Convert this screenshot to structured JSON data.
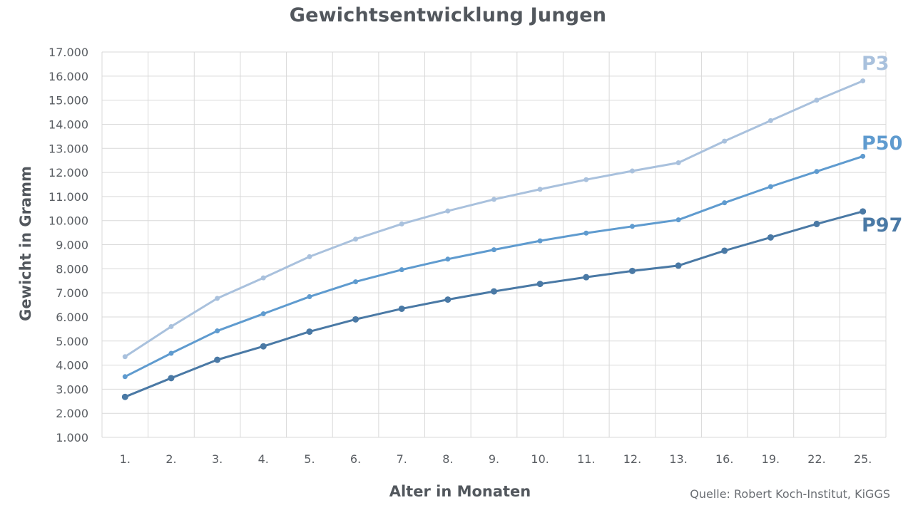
{
  "chart_data": {
    "type": "line",
    "title": "Gewichtsentwicklung Jungen",
    "xlabel": "Alter in Monaten",
    "ylabel": "Gewicht in Gramm",
    "categories": [
      "1.",
      "2.",
      "3.",
      "4.",
      "5.",
      "6.",
      "7.",
      "8.",
      "9.",
      "10.",
      "11.",
      "12.",
      "13.",
      "16.",
      "19.",
      "22.",
      "25."
    ],
    "ylim": [
      1000,
      17000
    ],
    "yticks": [
      "1.000",
      "2.000",
      "3.000",
      "4.000",
      "5.000",
      "6.000",
      "7.000",
      "8.000",
      "9.000",
      "10.000",
      "11.000",
      "12.000",
      "13.000",
      "14.000",
      "15.000",
      "16.000",
      "17.000"
    ],
    "grid": true,
    "series": [
      {
        "name": "P3",
        "color": "#a9c1dd",
        "values": [
          4350,
          5600,
          6770,
          7620,
          8500,
          9230,
          9860,
          10400,
          10880,
          11300,
          11700,
          12060,
          12400,
          13300,
          14150,
          15000,
          15800
        ]
      },
      {
        "name": "P50",
        "color": "#5f9bcf",
        "values": [
          3520,
          4490,
          5420,
          6130,
          6840,
          7460,
          7960,
          8400,
          8790,
          9160,
          9480,
          9760,
          10030,
          10740,
          11410,
          12040,
          12670
        ]
      },
      {
        "name": "P97",
        "color": "#4a79a5",
        "values": [
          2680,
          3460,
          4220,
          4780,
          5390,
          5900,
          6340,
          6720,
          7060,
          7370,
          7650,
          7910,
          8130,
          8750,
          9300,
          9860,
          10380
        ]
      }
    ],
    "source_note": "Quelle: Robert Koch-Institut, KiGGS"
  }
}
